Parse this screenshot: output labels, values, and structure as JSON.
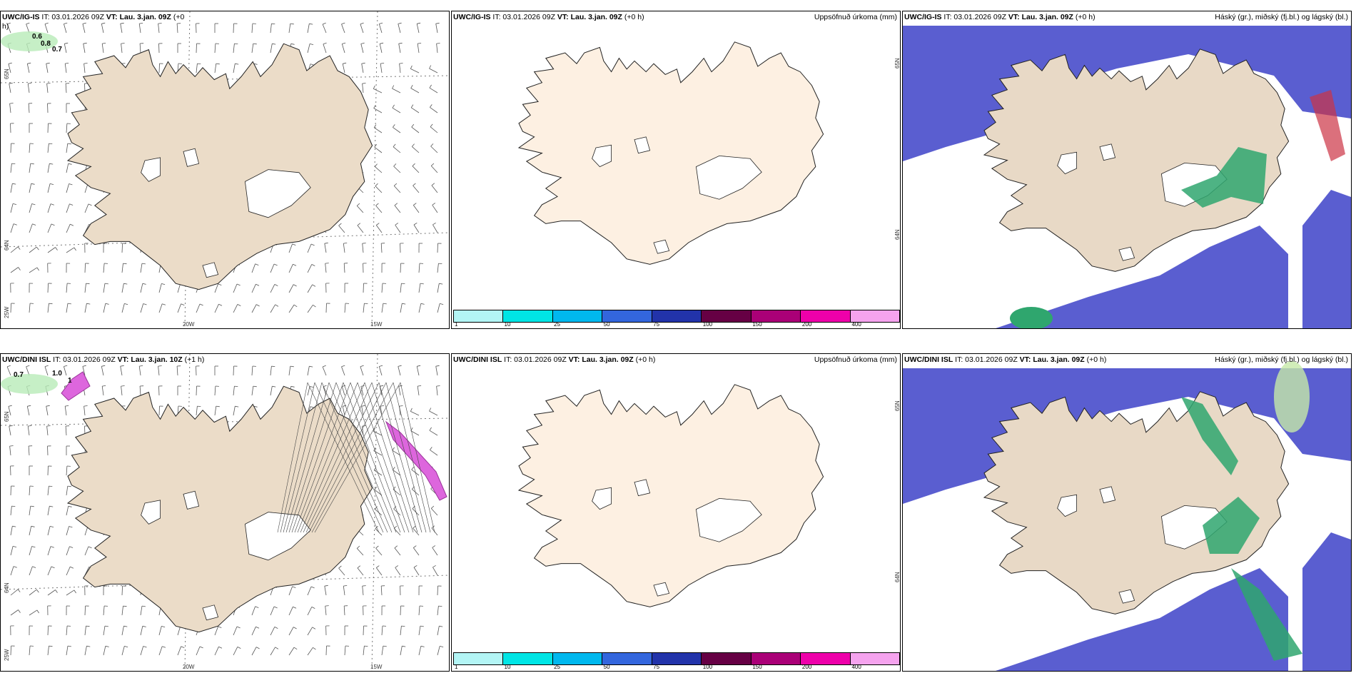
{
  "panels": [
    {
      "id": "top-left",
      "model": "UWC/IG-IS",
      "it_label": "IT: 03.01.2026 09Z",
      "vt_label": "VT: Lau. 3.jan. 09Z",
      "offset_label": "(+0",
      "offset_label2": "h)",
      "lat_labels": [
        "65N",
        "64N",
        "25W"
      ],
      "lon_labels": [
        "20W",
        "15W"
      ],
      "numbers": [
        "0.6",
        "0.8",
        "0.7"
      ]
    },
    {
      "id": "top-middle",
      "model": "UWC/IG-IS",
      "it_label": "IT: 03.01.2026 09Z",
      "vt_label": "VT: Lau. 3.jan. 09Z",
      "offset_label": "(+0 h)",
      "right_label": "Uppsöfnuð úrkoma (mm)",
      "side_labels": [
        "65N",
        "64N"
      ]
    },
    {
      "id": "top-right",
      "model": "UWC/IG-IS",
      "it_label": "IT: 03.01.2026 09Z",
      "vt_label": "VT: Lau. 3.jan. 09Z",
      "offset_label": "(+0 h)",
      "right_label": "Háský (gr.), miðský (fj.bl.) og lágský (bl.)"
    },
    {
      "id": "bottom-left",
      "model": "UWC/DINI ISL",
      "it_label": "IT: 03.01.2026 09Z",
      "vt_label": "VT: Lau. 3.jan. 10Z",
      "offset_label": "(+1 h)",
      "lat_labels": [
        "65N",
        "64N",
        "25W"
      ],
      "lon_labels": [
        "20W",
        "15W"
      ],
      "numbers": [
        "0.7",
        "1.0",
        "1"
      ]
    },
    {
      "id": "bottom-middle",
      "model": "UWC/DINI ISL",
      "it_label": "IT: 03.01.2026 09Z",
      "vt_label": "VT: Lau. 3.jan. 09Z",
      "offset_label": "(+0 h)",
      "right_label": "Uppsöfnuð úrkoma (mm)",
      "side_labels": [
        "65N",
        "64N"
      ]
    },
    {
      "id": "bottom-right",
      "model": "UWC/DINI ISL",
      "it_label": "IT: 03.01.2026 09Z",
      "vt_label": "VT: Lau. 3.jan. 09Z",
      "offset_label": "(+0 h)",
      "right_label": "Háský (gr.), miðský (fj.bl.) og lágský (bl.)"
    }
  ],
  "colorbar": {
    "ticks": [
      "1",
      "10",
      "25",
      "50",
      "75",
      "100",
      "150",
      "200",
      "400"
    ],
    "colors": [
      "#b3f5f5",
      "#00e5e5",
      "#00b8ee",
      "#3366dd",
      "#2233aa",
      "#660044",
      "#aa0077",
      "#ee00aa",
      "#f5a3ee"
    ]
  },
  "colors": {
    "land_wind": "#ebdcc8",
    "land_precip": "#fdf0e2",
    "land_cloud": "#e8d9c6",
    "low_cloud": "#5a5ed0",
    "mid_cloud": "#2fa66e",
    "high_cloud": "#c6e8a8",
    "precip_light": "#b8ebb8",
    "precip_pink": "#dd66dd"
  }
}
